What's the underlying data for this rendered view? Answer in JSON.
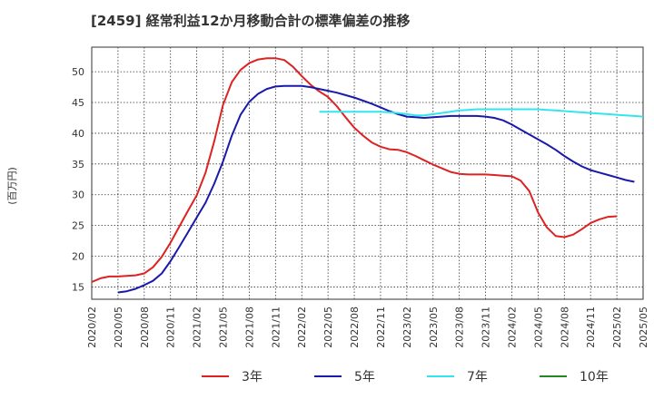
{
  "chart_data": {
    "type": "line",
    "title": "[2459]  経常利益12か月移動合計の標準偏差の推移",
    "ylabel": "(百万円)",
    "xlabel": "",
    "ylim": [
      13,
      54
    ],
    "yticks": [
      15,
      20,
      25,
      30,
      35,
      40,
      45,
      50
    ],
    "x_ticks": [
      "2020/02",
      "2020/05",
      "2020/08",
      "2020/11",
      "2021/02",
      "2021/05",
      "2021/08",
      "2021/11",
      "2022/02",
      "2022/05",
      "2022/08",
      "2022/11",
      "2023/02",
      "2023/05",
      "2023/08",
      "2023/11",
      "2024/02",
      "2024/05",
      "2024/08",
      "2024/11",
      "2025/02",
      "2025/05"
    ],
    "grid": true,
    "legend_position": "bottom",
    "series": [
      {
        "name": "3年",
        "color": "#dd2222",
        "start": "2020/02",
        "values": [
          15.8,
          16.4,
          16.7,
          16.7,
          16.8,
          16.9,
          17.2,
          18.2,
          19.9,
          22.2,
          24.8,
          27.4,
          29.9,
          33.6,
          38.7,
          44.6,
          48.3,
          50.3,
          51.4,
          52.0,
          52.2,
          52.2,
          51.9,
          50.8,
          49.3,
          47.9,
          46.8,
          45.9,
          44.4,
          42.6,
          40.9,
          39.6,
          38.5,
          37.8,
          37.4,
          37.3,
          36.9,
          36.3,
          35.6,
          34.9,
          34.3,
          33.7,
          33.4,
          33.3,
          33.3,
          33.3,
          33.2,
          33.1,
          33.0,
          32.3,
          30.6,
          27.1,
          24.7,
          23.3,
          23.1,
          23.5,
          24.4,
          25.4,
          26.0,
          26.4,
          26.5
        ]
      },
      {
        "name": "5年",
        "color": "#1a1aaa",
        "start": "2020/05",
        "values": [
          14.1,
          14.3,
          14.7,
          15.3,
          16.0,
          17.2,
          19.2,
          21.5,
          23.9,
          26.3,
          28.7,
          31.8,
          35.4,
          39.6,
          43.0,
          45.1,
          46.4,
          47.2,
          47.6,
          47.7,
          47.7,
          47.7,
          47.5,
          47.2,
          46.9,
          46.6,
          46.2,
          45.8,
          45.3,
          44.8,
          44.2,
          43.6,
          43.1,
          42.7,
          42.6,
          42.5,
          42.6,
          42.7,
          42.8,
          42.8,
          42.8,
          42.8,
          42.7,
          42.5,
          42.1,
          41.4,
          40.6,
          39.8,
          39.0,
          38.2,
          37.3,
          36.3,
          35.4,
          34.6,
          34.0,
          33.6,
          33.2,
          32.8,
          32.4,
          32.1
        ]
      },
      {
        "name": "7年",
        "color": "#33e5ee",
        "start": "2022/04",
        "values": [
          43.5,
          43.5,
          43.5,
          43.5,
          43.5,
          43.5,
          43.5,
          43.5,
          43.4,
          43.3,
          43.1,
          42.9,
          42.9,
          43.1,
          43.3,
          43.5,
          43.7,
          43.8,
          43.9,
          43.9,
          43.9,
          43.9,
          43.9,
          43.9,
          43.9,
          43.9,
          43.8,
          43.7,
          43.6,
          43.5,
          43.4,
          43.3,
          43.2,
          43.1,
          43.0,
          42.9,
          42.8,
          42.7
        ]
      },
      {
        "name": "10年",
        "color": "#228822",
        "start": "2025/02",
        "values": []
      }
    ]
  }
}
